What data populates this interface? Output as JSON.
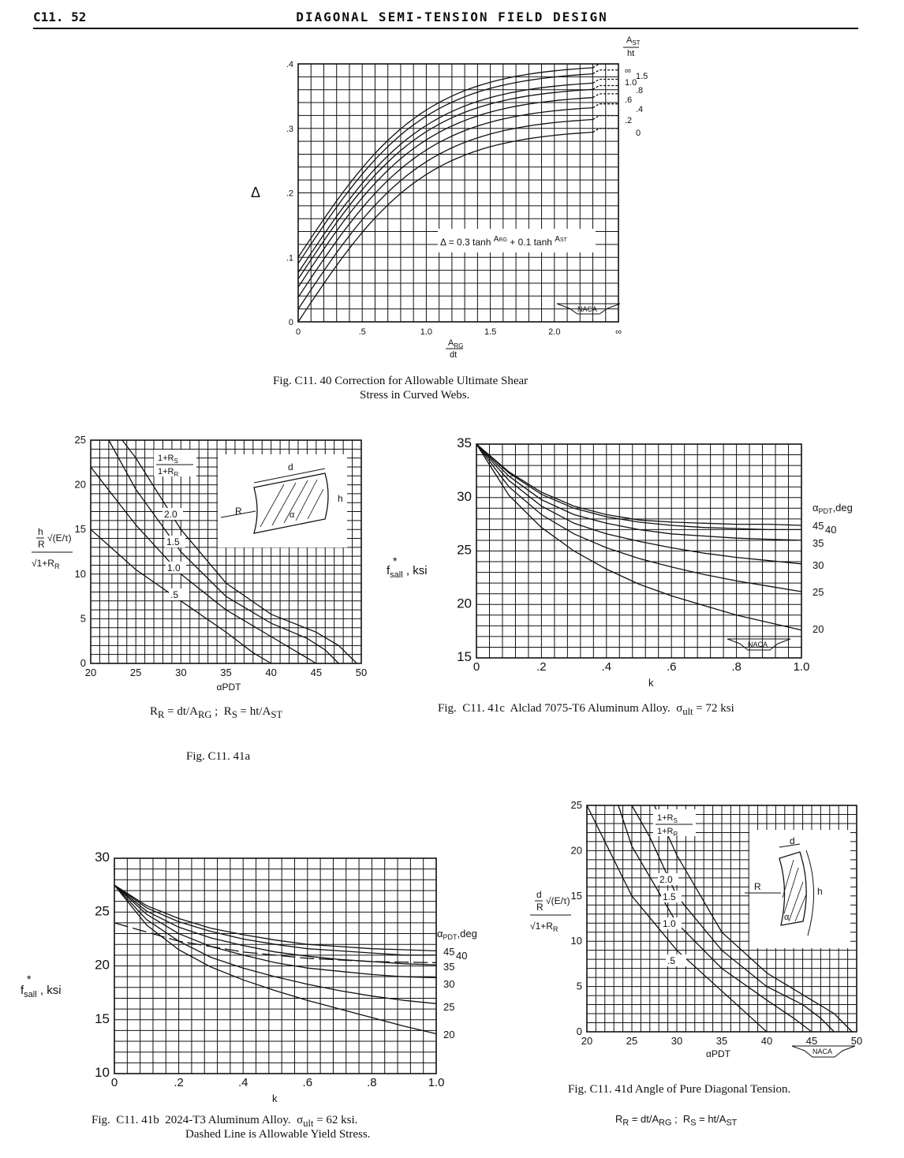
{
  "header": {
    "page_number": "C11. 52",
    "section_title": "DIAGONAL SEMI-TENSION FIELD DESIGN"
  },
  "figures": {
    "fig40": {
      "caption_line1": "Fig. C11. 40  Correction for Allowable Ultimate Shear",
      "caption_line2": "Stress in Curved Webs.",
      "y_axis_symbol": "Δ",
      "formula": "Δ = 0.3 tanh A_RG/dt + 0.1 tanh A_ST/ht",
      "logo": "NACA",
      "curve_label_header": "A_ST/ht",
      "curve_labels": [
        "∞",
        "1.5",
        "1.0",
        ".8",
        ".6",
        ".4",
        ".2",
        "0"
      ]
    },
    "fig41a": {
      "caption": "Fig. C11. 41a",
      "formula": "R_R = dt/A_RG ;  R_S = ht/A_ST",
      "y_axis_label": "(h/R)√(E/τ) / √(1+R_R)",
      "x_axis_label": "α_PDT",
      "legend_header": "(1+R_S)/(1+R_R)",
      "curve_labels": [
        "2.0",
        "1.5",
        "1.0",
        ".5"
      ],
      "inset_labels": [
        "d",
        "h",
        "R",
        "α"
      ]
    },
    "fig41b": {
      "caption_line1": "Fig. C11. 41b  2024-T3 Aluminum Alloy.  σ_ult = 62 ksi.",
      "caption_line2": "Dashed Line is Allowable Yield Stress.",
      "y_axis_label": "f*_s_all , ksi",
      "x_axis_label": "k",
      "legend_header": "α_PDT ,deg",
      "curve_labels": [
        "45",
        "40",
        "35",
        "30",
        "25",
        "20"
      ]
    },
    "fig41c": {
      "caption": "Fig. C11. 41c  Alclad 7075-T6 Aluminum Alloy.  σ_ult = 72 ksi",
      "y_axis_label": "f*_s_all , ksi",
      "x_axis_label": "k",
      "legend_header": "α_PDT ,deg",
      "curve_labels": [
        "45",
        "40",
        "35",
        "30",
        "25",
        "20"
      ],
      "logo": "NACA"
    },
    "fig41d": {
      "caption": "Fig. C11. 41d  Angle of Pure Diagonal Tension.",
      "formula": "R_R = dt/A_RG ;  R_S = ht/A_ST",
      "y_axis_label": "(d/R)√(E/τ) / √(1+R_R)",
      "x_axis_label": "α_PDT",
      "legend_header": "(1+R_S)/(1+R_R)",
      "curve_labels": [
        "2.0",
        "1.5",
        "1.0",
        ".5"
      ],
      "inset_labels": [
        "d",
        "h",
        "R",
        "α"
      ],
      "logo": "NACA"
    }
  },
  "chart_data": [
    {
      "id": "fig40",
      "type": "line",
      "xlabel": "A_RG/dt",
      "ylabel": "Δ",
      "xlim": [
        0,
        2.5
      ],
      "ylim": [
        0,
        0.4
      ],
      "x_ticks": [
        "0",
        ".5",
        "1.0",
        "1.5",
        "2.0",
        "∞"
      ],
      "y_ticks": [
        "0",
        ".1",
        ".2",
        ".3",
        ".4"
      ],
      "formula": "Δ = 0.3 tanh(A_RG/dt) + 0.1 tanh(A_ST/ht)",
      "series": [
        {
          "name": "∞",
          "param": 100
        },
        {
          "name": "1.5",
          "param": 1.5
        },
        {
          "name": "1.0",
          "param": 1.0
        },
        {
          "name": ".8",
          "param": 0.8
        },
        {
          "name": ".6",
          "param": 0.6
        },
        {
          "name": ".4",
          "param": 0.4
        },
        {
          "name": ".2",
          "param": 0.2
        },
        {
          "name": "0",
          "param": 0
        }
      ]
    },
    {
      "id": "fig41a",
      "type": "line",
      "xlabel": "α_PDT",
      "xlim": [
        20,
        50
      ],
      "ylim": [
        0,
        25
      ],
      "x_ticks": [
        "20",
        "25",
        "30",
        "35",
        "40",
        "45",
        "50"
      ],
      "y_ticks": [
        "0",
        "5",
        "10",
        "15",
        "20",
        "25"
      ],
      "series": [
        {
          "name": ".5",
          "x": [
            20,
            25,
            30,
            35,
            38,
            40
          ],
          "y": [
            15,
            10.5,
            7,
            3.5,
            1.2,
            0
          ]
        },
        {
          "name": "1.0",
          "x": [
            20,
            25,
            30,
            35,
            40,
            43,
            45
          ],
          "y": [
            22,
            15.5,
            10,
            6,
            3,
            1.2,
            0
          ]
        },
        {
          "name": "1.5",
          "x": [
            22,
            25,
            30,
            35,
            40,
            44,
            46,
            47.5
          ],
          "y": [
            25,
            19.5,
            12.5,
            7.5,
            4.5,
            2.8,
            1.5,
            0
          ]
        },
        {
          "name": "2.0",
          "x": [
            23.5,
            25,
            30,
            35,
            40,
            45,
            47.5,
            49.5
          ],
          "y": [
            25,
            23,
            15,
            9,
            5.5,
            3.5,
            2,
            0
          ]
        }
      ]
    },
    {
      "id": "fig41b",
      "type": "line",
      "xlabel": "k",
      "ylabel": "f*s_all , ksi",
      "xlim": [
        0,
        1.0
      ],
      "ylim": [
        10,
        30
      ],
      "x_ticks": [
        "0",
        ".2",
        ".4",
        ".6",
        ".8",
        "1.0"
      ],
      "y_ticks": [
        "10",
        "15",
        "20",
        "25",
        "30"
      ],
      "series": [
        {
          "name": "45",
          "x": [
            0,
            0.1,
            0.2,
            0.3,
            0.4,
            0.5,
            0.6,
            0.7,
            0.8,
            0.9,
            1.0
          ],
          "y": [
            27.5,
            25.6,
            24.4,
            23.5,
            22.9,
            22.4,
            22.0,
            21.8,
            21.6,
            21.5,
            21.4
          ]
        },
        {
          "name": "40",
          "x": [
            0,
            0.1,
            0.2,
            0.3,
            0.4,
            0.5,
            0.6,
            0.7,
            0.8,
            0.9,
            1.0
          ],
          "y": [
            27.5,
            25.4,
            24.1,
            23.2,
            22.5,
            22.0,
            21.6,
            21.4,
            21.2,
            21.0,
            21.0
          ]
        },
        {
          "name": "35",
          "x": [
            0,
            0.1,
            0.2,
            0.3,
            0.4,
            0.5,
            0.6,
            0.7,
            0.8,
            0.9,
            1.0
          ],
          "y": [
            27.5,
            25.1,
            23.6,
            22.6,
            21.9,
            21.3,
            20.9,
            20.6,
            20.4,
            20.2,
            20.1
          ]
        },
        {
          "name": "30",
          "x": [
            0,
            0.1,
            0.2,
            0.3,
            0.4,
            0.5,
            0.6,
            0.7,
            0.8,
            0.9,
            1.0
          ],
          "y": [
            27.5,
            24.8,
            23.0,
            21.8,
            21.0,
            20.3,
            19.8,
            19.5,
            19.2,
            19.0,
            18.9
          ]
        },
        {
          "name": "25",
          "x": [
            0,
            0.1,
            0.2,
            0.3,
            0.4,
            0.5,
            0.6,
            0.7,
            0.8,
            0.9,
            1.0
          ],
          "y": [
            27.5,
            24.3,
            22.3,
            20.8,
            19.8,
            19.0,
            18.3,
            17.7,
            17.2,
            16.8,
            16.5
          ]
        },
        {
          "name": "20",
          "x": [
            0,
            0.1,
            0.2,
            0.3,
            0.4,
            0.5,
            0.6,
            0.7,
            0.8,
            0.9,
            1.0
          ],
          "y": [
            27.5,
            23.8,
            21.5,
            19.9,
            18.7,
            17.7,
            16.8,
            16.0,
            15.2,
            14.4,
            13.7
          ]
        },
        {
          "name": "yield (dashed)",
          "x": [
            0,
            0.2,
            0.4,
            0.6,
            0.8,
            1.0
          ],
          "y": [
            24,
            22.3,
            21.3,
            20.7,
            20.4,
            20.3
          ]
        }
      ]
    },
    {
      "id": "fig41c",
      "type": "line",
      "xlabel": "k",
      "ylabel": "f*s_all , ksi",
      "xlim": [
        0,
        1.0
      ],
      "ylim": [
        15,
        35
      ],
      "x_ticks": [
        "0",
        ".2",
        ".4",
        ".6",
        ".8",
        "1.0"
      ],
      "y_ticks": [
        "15",
        "20",
        "25",
        "30",
        "35"
      ],
      "series": [
        {
          "name": "45",
          "x": [
            0,
            0.1,
            0.2,
            0.3,
            0.4,
            0.5,
            0.6,
            0.7,
            0.8,
            0.9,
            1.0
          ],
          "y": [
            35,
            32.4,
            30.5,
            29.2,
            28.4,
            27.9,
            27.7,
            27.6,
            27.5,
            27.5,
            27.4
          ]
        },
        {
          "name": "40",
          "x": [
            0,
            0.1,
            0.2,
            0.3,
            0.4,
            0.5,
            0.6,
            0.7,
            0.8,
            0.9,
            1.0
          ],
          "y": [
            35,
            32.3,
            30.3,
            29.0,
            28.2,
            27.7,
            27.4,
            27.2,
            27.1,
            27.0,
            27.0
          ]
        },
        {
          "name": "35",
          "x": [
            0,
            0.1,
            0.2,
            0.3,
            0.4,
            0.5,
            0.6,
            0.7,
            0.8,
            0.9,
            1.0
          ],
          "y": [
            35,
            32.0,
            29.8,
            28.4,
            27.6,
            27.0,
            26.6,
            26.4,
            26.2,
            26.1,
            26.0
          ]
        },
        {
          "name": "30",
          "x": [
            0,
            0.1,
            0.2,
            0.3,
            0.4,
            0.5,
            0.6,
            0.7,
            0.8,
            0.9,
            1.0
          ],
          "y": [
            35,
            31.6,
            29.2,
            27.6,
            26.6,
            25.9,
            25.3,
            24.8,
            24.4,
            24.1,
            23.8
          ]
        },
        {
          "name": "25",
          "x": [
            0,
            0.1,
            0.2,
            0.3,
            0.4,
            0.5,
            0.6,
            0.7,
            0.8,
            0.9,
            1.0
          ],
          "y": [
            35,
            31.0,
            28.4,
            26.6,
            25.3,
            24.3,
            23.5,
            22.8,
            22.2,
            21.7,
            21.2
          ]
        },
        {
          "name": "20",
          "x": [
            0,
            0.1,
            0.2,
            0.3,
            0.4,
            0.5,
            0.6,
            0.7,
            0.8,
            0.9,
            1.0
          ],
          "y": [
            35,
            30.2,
            27.2,
            25.0,
            23.3,
            21.9,
            20.8,
            19.9,
            19.0,
            18.3,
            17.6
          ]
        }
      ]
    },
    {
      "id": "fig41d",
      "type": "line",
      "xlabel": "α_PDT",
      "xlim": [
        20,
        50
      ],
      "ylim": [
        0,
        25
      ],
      "x_ticks": [
        "20",
        "25",
        "30",
        "35",
        "40",
        "45",
        "50"
      ],
      "y_ticks": [
        "0",
        "5",
        "10",
        "15",
        "20",
        "25"
      ],
      "series": [
        {
          "name": ".5",
          "x": [
            20,
            25,
            30,
            35,
            38,
            40
          ],
          "y": [
            25,
            15,
            9,
            4.5,
            1.8,
            0
          ]
        },
        {
          "name": "1.0",
          "x": [
            23.5,
            25,
            30,
            35,
            40,
            43,
            45
          ],
          "y": [
            25,
            20.5,
            12,
            7,
            3.5,
            1.5,
            0
          ]
        },
        {
          "name": "1.5",
          "x": [
            25,
            27,
            30,
            35,
            40,
            44,
            46,
            47.5
          ],
          "y": [
            25,
            21.5,
            15,
            9,
            5,
            3,
            1.5,
            0
          ]
        },
        {
          "name": "2.0",
          "x": [
            27.5,
            30,
            35,
            40,
            45,
            47.5,
            49.5
          ],
          "y": [
            25,
            19.5,
            11,
            6.5,
            3.5,
            2,
            0
          ]
        }
      ]
    }
  ]
}
